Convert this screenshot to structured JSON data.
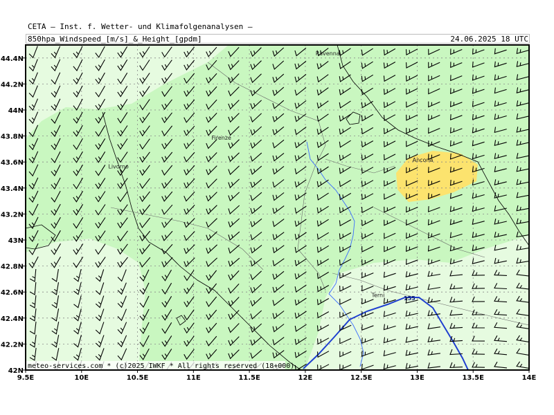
{
  "header": {
    "org_line": "CETA — Inst. f. Wetter- und Klimafolgenanalysen —",
    "product": "850hpa_Windspeed_[m/s]_&_Height_[gpdm]",
    "valid_time": "24.06.2025 18 UTC"
  },
  "map": {
    "lon_range": [
      9.5,
      14.0
    ],
    "lat_range": [
      42.0,
      44.5
    ],
    "lon_ticks": [
      "9.5E",
      "10E",
      "10.5E",
      "11E",
      "11.5E",
      "12E",
      "12.5E",
      "13E",
      "13.5E",
      "14E"
    ],
    "lat_ticks": [
      "42N",
      "42.2N",
      "42.4N",
      "42.6N",
      "42.8N",
      "43N",
      "43.2N",
      "43.4N",
      "43.6N",
      "43.8N",
      "44N",
      "44.2N",
      "44.4N"
    ],
    "cities": [
      {
        "name": "Ravenna",
        "lon": 12.2,
        "lat": 44.42
      },
      {
        "name": "Firenze",
        "lon": 11.25,
        "lat": 43.77
      },
      {
        "name": "Livorno",
        "lon": 10.33,
        "lat": 43.55
      },
      {
        "name": "Ancona",
        "lon": 13.05,
        "lat": 43.6
      },
      {
        "name": "Terni",
        "lon": 12.65,
        "lat": 42.56
      }
    ],
    "contour": {
      "label": "155",
      "color": "#1f3fd0"
    },
    "colors": {
      "light_green": "#e6fbe0",
      "mid_green": "#c9f7c0",
      "yellow": "#fce36e",
      "coast": "#000000",
      "river": "#3a6cff",
      "grid": "#888888"
    },
    "credit": "meteo-services.com * (c)2025 IWKF * All rights reserved (18+000)"
  }
}
